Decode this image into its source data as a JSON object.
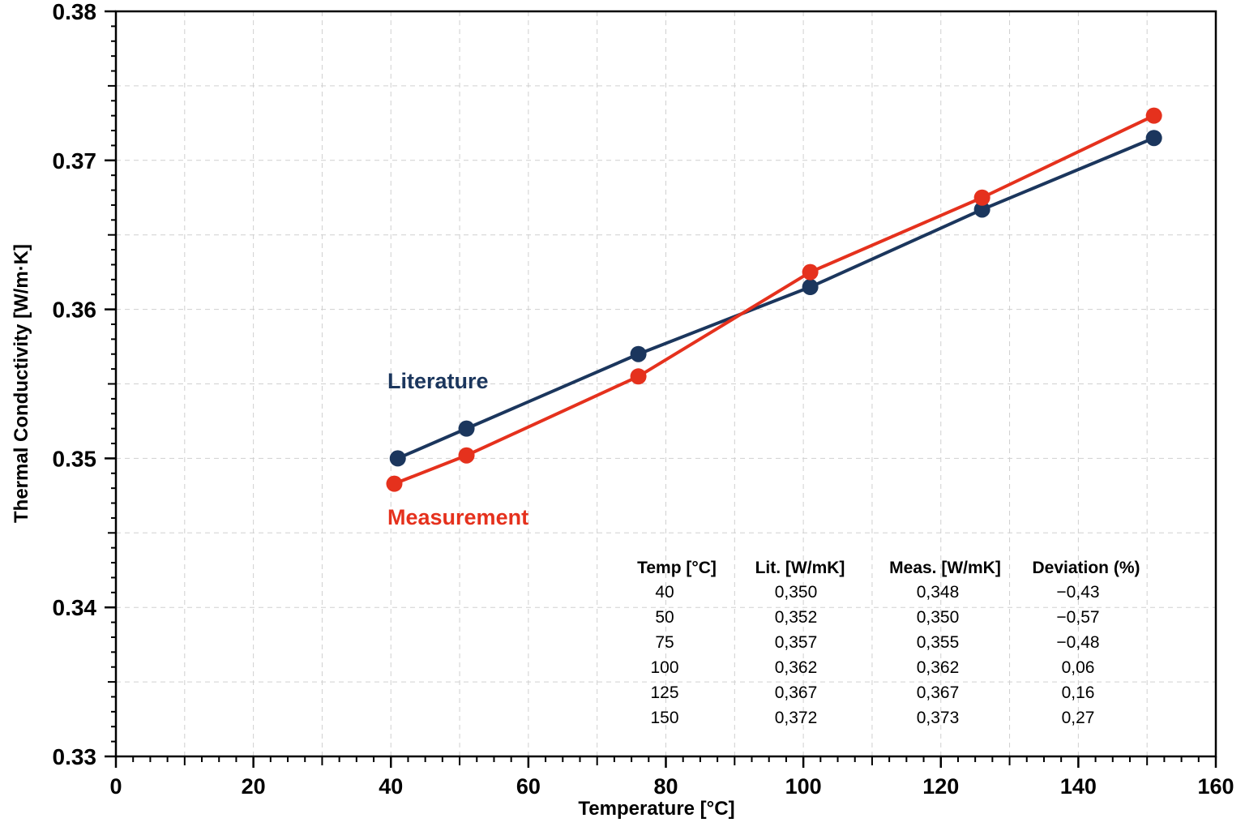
{
  "chart_data": {
    "type": "line",
    "xlabel": "Temperature [°C]",
    "ylabel": "Thermal Conductivity [W/m·K]",
    "xlim": [
      0,
      160
    ],
    "ylim": [
      0.33,
      0.38
    ],
    "x_ticks": [
      "0",
      "20",
      "40",
      "60",
      "80",
      "100",
      "120",
      "140",
      "160"
    ],
    "y_ticks": [
      "0.33",
      "0.34",
      "0.35",
      "0.36",
      "0.37",
      "0.38"
    ],
    "grid": true,
    "series": [
      {
        "name": "Literature",
        "color": "#1b365d",
        "x": [
          41,
          51,
          76,
          101,
          126,
          151
        ],
        "y": [
          0.35,
          0.352,
          0.357,
          0.3615,
          0.3667,
          0.3715
        ]
      },
      {
        "name": "Measurement",
        "color": "#e5311d",
        "x": [
          40.5,
          51,
          76,
          101,
          126,
          151
        ],
        "y": [
          0.3483,
          0.3502,
          0.3555,
          0.3625,
          0.3675,
          0.373
        ]
      }
    ],
    "table": {
      "headers": [
        "Temp [°C]",
        "Lit. [W/mK]",
        "Meas. [W/mK]",
        "Deviation (%)"
      ],
      "rows": [
        [
          "40",
          "0,350",
          "0,348",
          "−0,43"
        ],
        [
          "50",
          "0,352",
          "0,350",
          "−0,57"
        ],
        [
          "75",
          "0,357",
          "0,355",
          "−0,48"
        ],
        [
          "100",
          "0,362",
          "0,362",
          "0,06"
        ],
        [
          "125",
          "0,367",
          "0,367",
          "0,16"
        ],
        [
          "150",
          "0,372",
          "0,373",
          "0,27"
        ]
      ]
    }
  }
}
